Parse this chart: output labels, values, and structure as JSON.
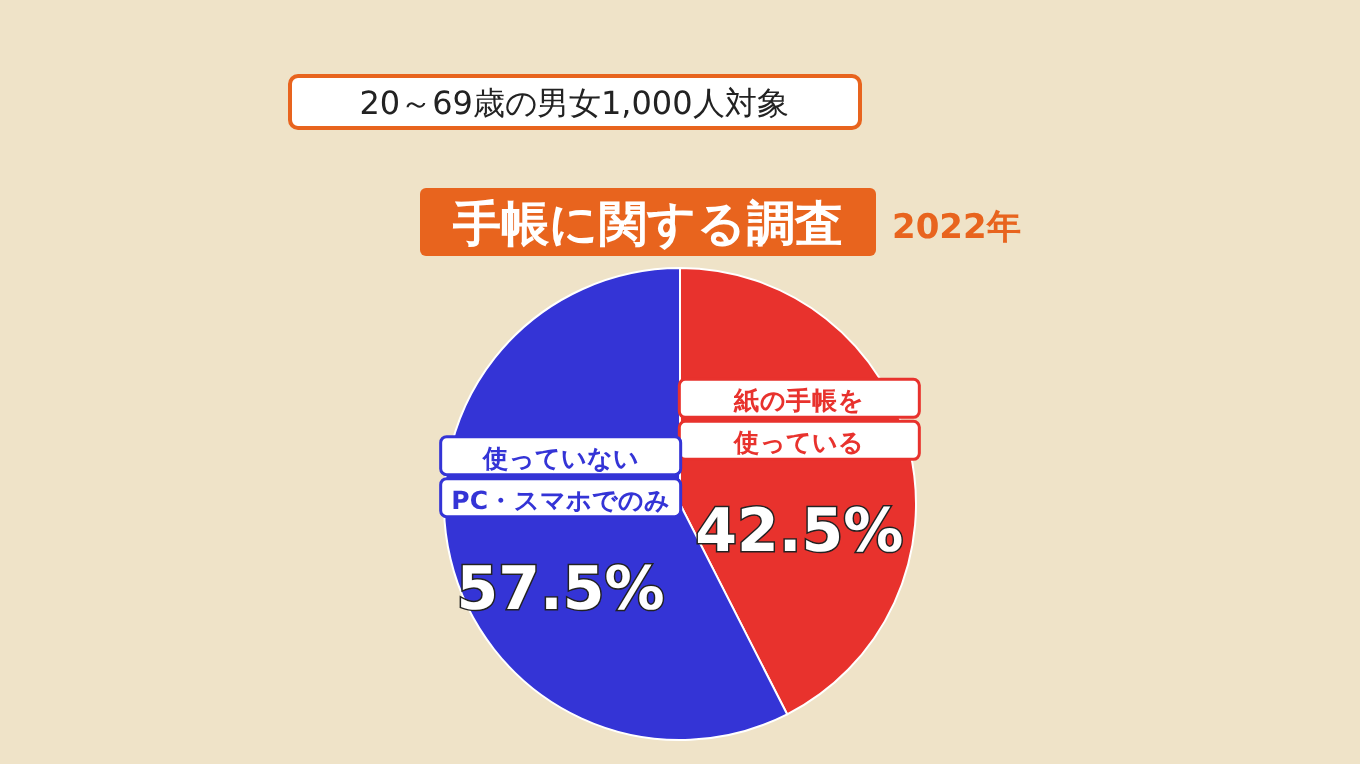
{
  "chart_data": {
    "type": "pie",
    "title": "手帳に関する調査",
    "subtitle": "20～69歳の男女1,000人対象",
    "annotations": [
      "2022年"
    ],
    "categories": [
      "紙の手帳を使っている",
      "使っていないPC・スマホでのみ"
    ],
    "values": [
      42.5,
      57.5
    ],
    "colors": [
      "#e8322d",
      "#3434d6"
    ],
    "value_labels": [
      "42.5%",
      "57.5%"
    ]
  }
}
